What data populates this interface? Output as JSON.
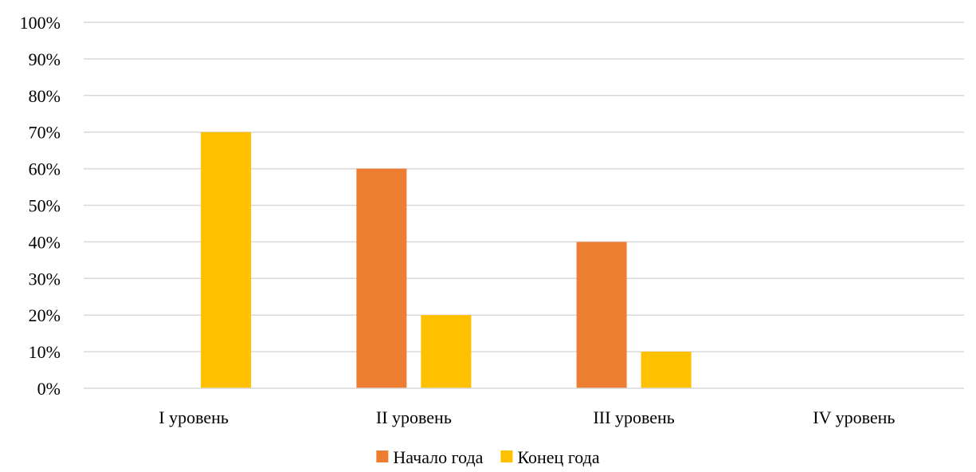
{
  "chart_data": {
    "type": "bar",
    "title": "",
    "xlabel": "",
    "ylabel": "",
    "categories": [
      "I уровень",
      "II уровень",
      "III уровень",
      "IV уровень"
    ],
    "series": [
      {
        "name": "Начало года",
        "color": "#ed7d31",
        "values": [
          0,
          60,
          40,
          0
        ]
      },
      {
        "name": "Конец года",
        "color": "#ffc000",
        "values": [
          70,
          20,
          10,
          0
        ]
      }
    ],
    "ylim": [
      0,
      100
    ],
    "yticks": [
      0,
      10,
      20,
      30,
      40,
      50,
      60,
      70,
      80,
      90,
      100
    ],
    "ytick_format": "percent",
    "grid": true,
    "legend": "bottom"
  }
}
